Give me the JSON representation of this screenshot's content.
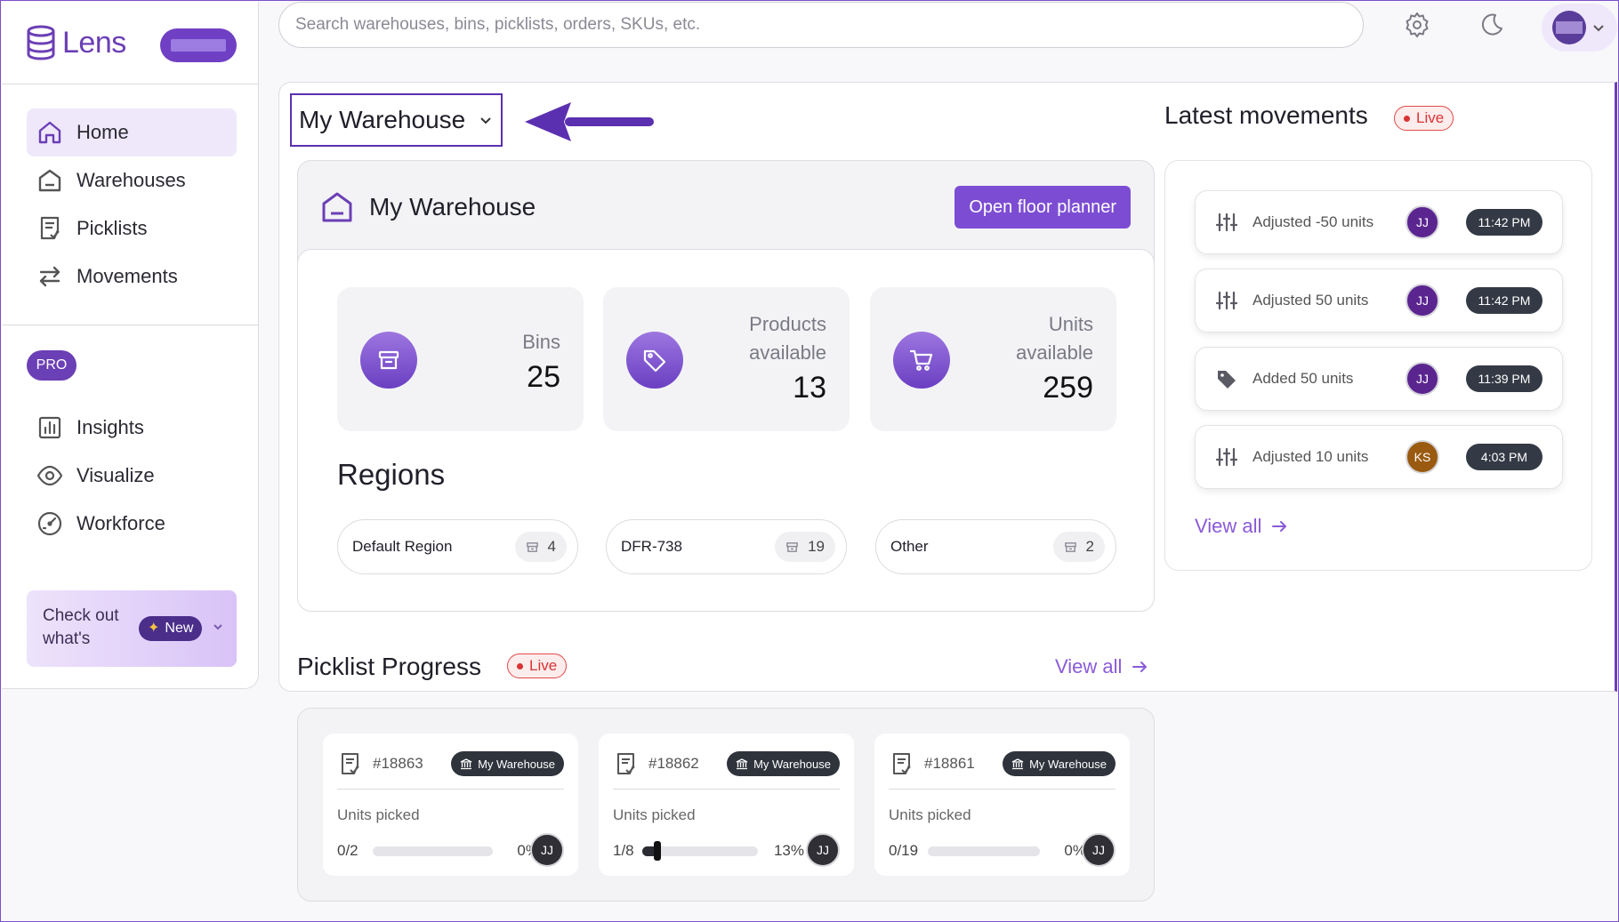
{
  "app": {
    "name": "Lens"
  },
  "colors": {
    "accent": "#6b3fb5",
    "accent_button": "#7c4dd3",
    "live_red": "#d93434",
    "avatar_jj": "#5b2590",
    "avatar_ks": "#9a5a10"
  },
  "sidebar": {
    "items": [
      {
        "label": "Home",
        "icon": "home-icon",
        "active": true
      },
      {
        "label": "Warehouses",
        "icon": "warehouse-icon"
      },
      {
        "label": "Picklists",
        "icon": "picklist-icon"
      },
      {
        "label": "Movements",
        "icon": "movements-icon"
      }
    ],
    "pro_label": "PRO",
    "pro_items": [
      {
        "label": "Insights",
        "icon": "insights-icon"
      },
      {
        "label": "Visualize",
        "icon": "eye-icon"
      },
      {
        "label": "Workforce",
        "icon": "gauge-icon"
      }
    ],
    "promo": {
      "text": "Check out what's",
      "badge": "New"
    }
  },
  "search": {
    "placeholder": "Search warehouses, bins, picklists, orders, SKUs, etc."
  },
  "warehouse_selector": {
    "value": "My Warehouse"
  },
  "warehouse_card": {
    "title": "My Warehouse",
    "floor_button": "Open floor planner",
    "stats": [
      {
        "label": "Bins",
        "value": "25",
        "icon": "archive-icon"
      },
      {
        "label": "Products available",
        "value": "13",
        "icon": "tag-icon"
      },
      {
        "label": "Units available",
        "value": "259",
        "icon": "cart-icon"
      }
    ],
    "regions_title": "Regions",
    "regions": [
      {
        "name": "Default Region",
        "count": "4"
      },
      {
        "name": "DFR-738",
        "count": "19"
      },
      {
        "name": "Other",
        "count": "2"
      }
    ]
  },
  "picklist_progress": {
    "title": "Picklist Progress",
    "live_label": "Live",
    "view_all": "View all",
    "units_label": "Units picked",
    "cards": [
      {
        "id": "#18863",
        "warehouse": "My Warehouse",
        "picked": "0/2",
        "percent": "0%",
        "progress": 0,
        "avatar": "JJ"
      },
      {
        "id": "#18862",
        "warehouse": "My Warehouse",
        "picked": "1/8",
        "percent": "13%",
        "progress": 0.13,
        "avatar": "JJ"
      },
      {
        "id": "#18861",
        "warehouse": "My Warehouse",
        "picked": "0/19",
        "percent": "0%",
        "progress": 0,
        "avatar": "JJ"
      }
    ]
  },
  "latest_movements": {
    "title": "Latest movements",
    "live_label": "Live",
    "view_all": "View all",
    "items": [
      {
        "text": "Adjusted -50 units",
        "icon": "sliders-icon",
        "avatar": "JJ",
        "time": "11:42 PM"
      },
      {
        "text": "Adjusted 50 units",
        "icon": "sliders-icon",
        "avatar": "JJ",
        "time": "11:42 PM"
      },
      {
        "text": "Added 50 units",
        "icon": "tag-icon",
        "avatar": "JJ",
        "time": "11:39 PM"
      },
      {
        "text": "Adjusted 10 units",
        "icon": "sliders-icon",
        "avatar": "KS",
        "time": "4:03 PM"
      }
    ]
  }
}
